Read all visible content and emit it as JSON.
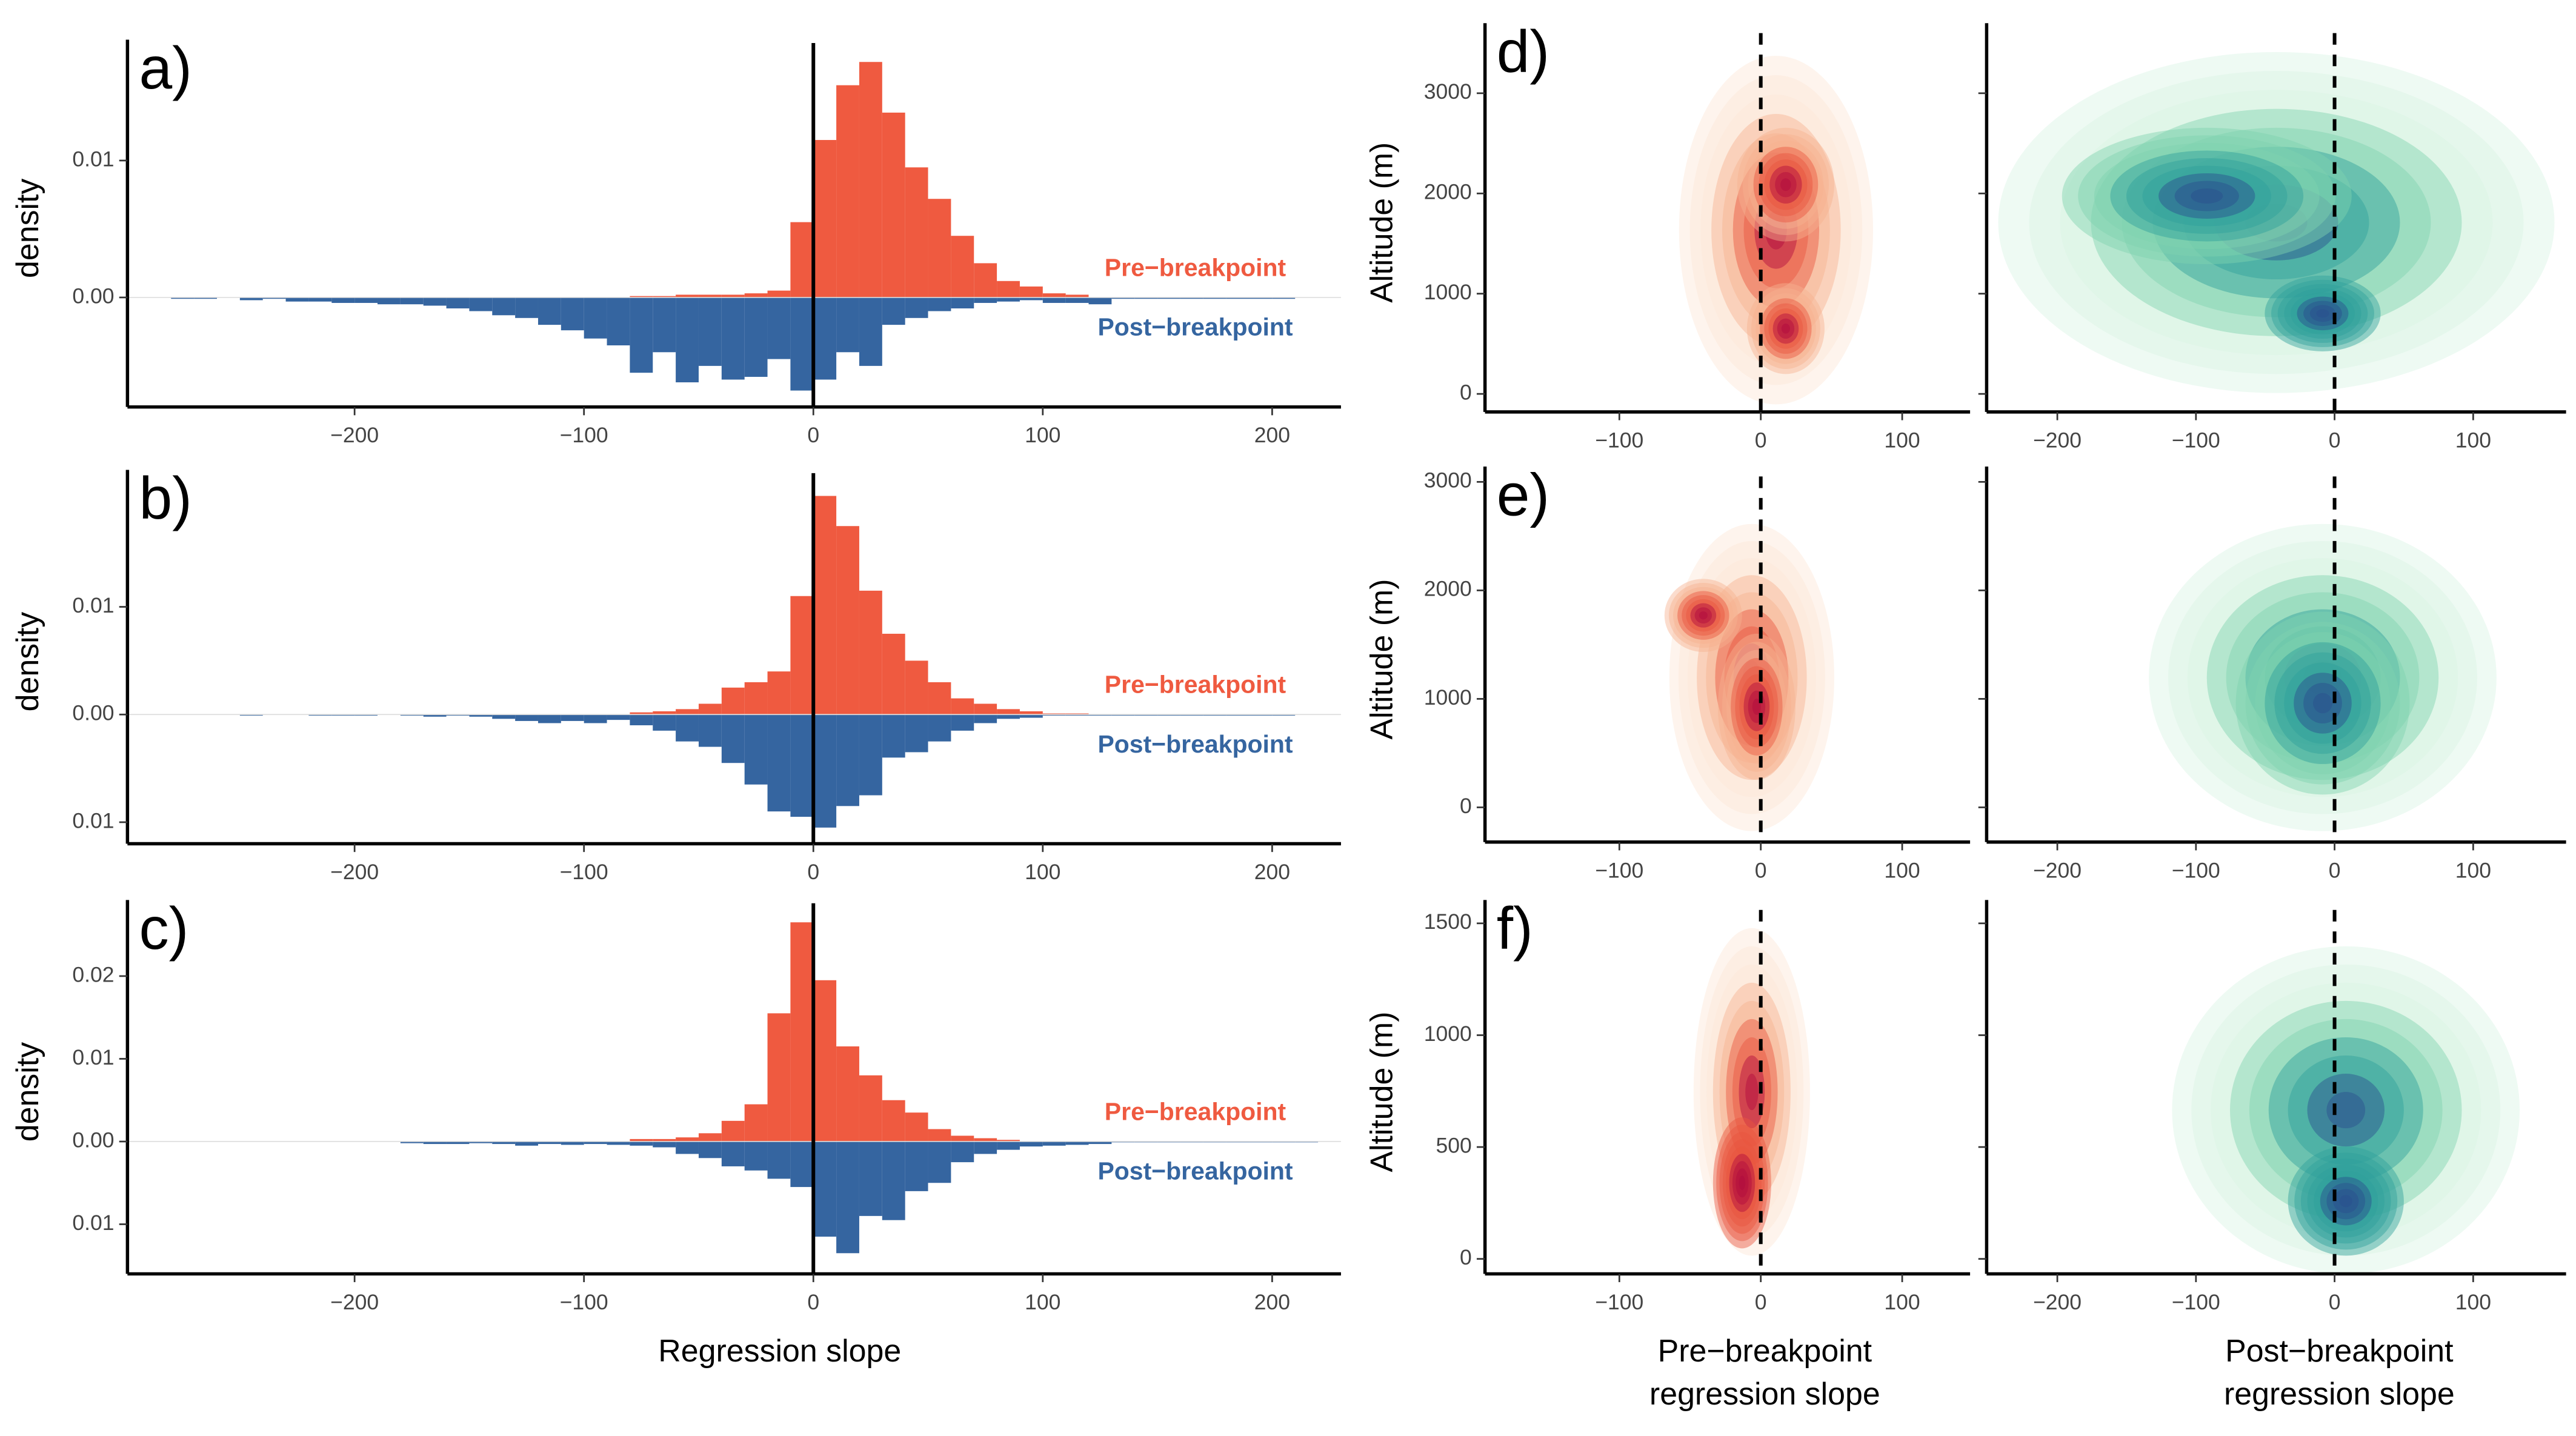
{
  "chart_data": [
    {
      "type": "histogram",
      "label": "a)",
      "ylabel": "density",
      "bins": [
        -280,
        -270,
        -260,
        -250,
        -240,
        -230,
        -220,
        -210,
        -200,
        -190,
        -180,
        -170,
        -160,
        -150,
        -140,
        -130,
        -120,
        -110,
        -100,
        -90,
        -80,
        -70,
        -60,
        -50,
        -40,
        -30,
        -20,
        -10,
        0,
        10,
        20,
        30,
        40,
        50,
        60,
        70,
        80,
        90,
        100,
        110,
        120,
        130,
        140,
        150,
        160,
        170,
        180,
        190,
        200,
        210,
        220
      ],
      "series": [
        {
          "name": "Pre−breakpoint",
          "color": "#ef5a40",
          "values": [
            0,
            0,
            0,
            0,
            0,
            0,
            0,
            0,
            0,
            0,
            0,
            0,
            0,
            0,
            0,
            0,
            0,
            0,
            0,
            0,
            0.0001,
            0.0001,
            0.0002,
            0.0002,
            0.0002,
            0.0003,
            0.0005,
            0.0055,
            0.0115,
            0.0155,
            0.0172,
            0.0135,
            0.0095,
            0.0072,
            0.0045,
            0.0025,
            0.0012,
            0.0008,
            0.0003,
            0.0002,
            0,
            0,
            0,
            0,
            0,
            0,
            0,
            0,
            0,
            0
          ]
        },
        {
          "name": "Post−breakpoint",
          "color": "#3565a0",
          "values": [
            -0.0001,
            -0.0001,
            0,
            -0.0002,
            -0.0001,
            -0.0003,
            -0.0003,
            -0.0004,
            -0.0004,
            -0.0005,
            -0.0005,
            -0.0006,
            -0.0008,
            -0.001,
            -0.0013,
            -0.0015,
            -0.002,
            -0.0024,
            -0.003,
            -0.0035,
            -0.0055,
            -0.004,
            -0.0062,
            -0.005,
            -0.006,
            -0.0058,
            -0.0045,
            -0.0068,
            -0.006,
            -0.004,
            -0.005,
            -0.002,
            -0.0015,
            -0.001,
            -0.0008,
            -0.0004,
            -0.0003,
            -0.0002,
            -0.0004,
            -0.0004,
            -0.0005,
            -0.0001,
            -0.0001,
            -0.0001,
            -0.0001,
            -0.0001,
            -0.0001,
            -0.0001,
            -0.0001,
            0
          ]
        }
      ],
      "xlim": [
        -299,
        230
      ],
      "ylim": [
        -0.008,
        0.0181
      ],
      "xticks": [
        {
          "value": -200,
          "label": "−200"
        },
        {
          "value": -100,
          "label": "−100"
        },
        0,
        100,
        200
      ],
      "yticks": [
        {
          "value": 0,
          "label": "0.00"
        },
        0.01
      ],
      "vline": 0
    },
    {
      "type": "histogram",
      "label": "b)",
      "ylabel": "density",
      "bins": [
        -280,
        -270,
        -260,
        -250,
        -240,
        -230,
        -220,
        -210,
        -200,
        -190,
        -180,
        -170,
        -160,
        -150,
        -140,
        -130,
        -120,
        -110,
        -100,
        -90,
        -80,
        -70,
        -60,
        -50,
        -40,
        -30,
        -20,
        -10,
        0,
        10,
        20,
        30,
        40,
        50,
        60,
        70,
        80,
        90,
        100,
        110,
        120,
        130,
        140,
        150,
        160,
        170,
        180,
        190,
        200,
        210,
        220
      ],
      "series": [
        {
          "name": "Pre−breakpoint",
          "color": "#ef5a40",
          "values": [
            0,
            0,
            0,
            0,
            0,
            0,
            0,
            0,
            0,
            0,
            0,
            0,
            0,
            0,
            0,
            0,
            0,
            0,
            0,
            0,
            0.0002,
            0.0003,
            0.0005,
            0.001,
            0.0025,
            0.003,
            0.004,
            0.011,
            0.0203,
            0.0175,
            0.0115,
            0.0075,
            0.005,
            0.003,
            0.0015,
            0.001,
            0.0005,
            0.0003,
            0.0001,
            0.0001,
            0,
            0,
            0,
            0,
            0,
            0,
            0,
            0,
            0,
            0
          ]
        },
        {
          "name": "Post−breakpoint",
          "color": "#3565a0",
          "values": [
            0,
            0,
            0,
            -0.0001,
            0,
            0,
            -0.0001,
            -0.0001,
            -0.0001,
            0,
            -0.0001,
            -0.0002,
            -0.0001,
            -0.0002,
            -0.0004,
            -0.0006,
            -0.0008,
            -0.0006,
            -0.0008,
            -0.0005,
            -0.001,
            -0.0015,
            -0.0025,
            -0.003,
            -0.0045,
            -0.0065,
            -0.009,
            -0.0095,
            -0.0105,
            -0.0085,
            -0.0075,
            -0.004,
            -0.0035,
            -0.0025,
            -0.0015,
            -0.0008,
            -0.0004,
            -0.0003,
            -0.0001,
            -0.0001,
            -0.0001,
            -0.0001,
            -0.0001,
            -0.0001,
            -0.0001,
            -0.0001,
            -0.0001,
            -0.0001,
            -0.0001,
            0
          ]
        }
      ],
      "xlim": [
        -299,
        230
      ],
      "ylim": [
        -0.012,
        0.0218
      ],
      "xticks": [
        {
          "value": -200,
          "label": "−200"
        },
        {
          "value": -100,
          "label": "−100"
        },
        0,
        100,
        200
      ],
      "yticks": [
        {
          "value": -0.01,
          "label": "0.01"
        },
        {
          "value": 0,
          "label": "0.00"
        },
        0.01
      ],
      "vline": 0
    },
    {
      "type": "histogram",
      "label": "c)",
      "ylabel": "density",
      "xlabel": "Regression slope",
      "bins": [
        -280,
        -270,
        -260,
        -250,
        -240,
        -230,
        -220,
        -210,
        -200,
        -190,
        -180,
        -170,
        -160,
        -150,
        -140,
        -130,
        -120,
        -110,
        -100,
        -90,
        -80,
        -70,
        -60,
        -50,
        -40,
        -30,
        -20,
        -10,
        0,
        10,
        20,
        30,
        40,
        50,
        60,
        70,
        80,
        90,
        100,
        110,
        120,
        130,
        140,
        150,
        160,
        170,
        180,
        190,
        200,
        210,
        220
      ],
      "series": [
        {
          "name": "Pre−breakpoint",
          "color": "#ef5a40",
          "values": [
            0,
            0,
            0,
            0,
            0,
            0,
            0,
            0,
            0,
            0,
            0,
            0,
            0,
            0,
            0,
            0,
            0,
            0,
            0,
            0,
            0.0003,
            0.0003,
            0.0005,
            0.001,
            0.0025,
            0.0045,
            0.0155,
            0.0265,
            0.0195,
            0.0115,
            0.008,
            0.005,
            0.0035,
            0.0015,
            0.0007,
            0.0004,
            0.0002,
            0,
            0,
            0,
            0,
            0,
            0,
            0,
            0,
            0,
            0,
            0,
            0,
            0
          ]
        },
        {
          "name": "Post−breakpoint",
          "color": "#3565a0",
          "values": [
            0,
            0,
            0,
            0,
            0,
            0,
            0,
            0,
            0,
            0,
            -0.0002,
            -0.0003,
            -0.0003,
            -0.0002,
            -0.0003,
            -0.0005,
            -0.0003,
            -0.0004,
            -0.0003,
            -0.0004,
            -0.0005,
            -0.0007,
            -0.0015,
            -0.002,
            -0.003,
            -0.0035,
            -0.0045,
            -0.0055,
            -0.0115,
            -0.0135,
            -0.009,
            -0.0095,
            -0.006,
            -0.005,
            -0.0025,
            -0.0015,
            -0.001,
            -0.0006,
            -0.0005,
            -0.0004,
            -0.0003,
            -0.0001,
            -0.0001,
            -0.0001,
            -0.0001,
            -0.0001,
            -0.0001,
            -0.0001,
            -0.0001,
            -0.0001
          ]
        }
      ],
      "xlim": [
        -299,
        230
      ],
      "ylim": [
        -0.016,
        0.028
      ],
      "xticks": [
        {
          "value": -200,
          "label": "−200"
        },
        {
          "value": -100,
          "label": "−100"
        },
        0,
        100,
        200
      ],
      "yticks": [
        {
          "value": -0.01,
          "label": "0.01"
        },
        {
          "value": 0,
          "label": "0.00"
        },
        0.01,
        0.02
      ],
      "vline": 0
    },
    {
      "type": "density2d",
      "label": "d)",
      "ylabel": "Altitude (m)",
      "palette": [
        "#fde6d8",
        "#f7b291",
        "#e8553d",
        "#b0083e"
      ],
      "xlim": [
        -195,
        148
      ],
      "ylim": [
        -180,
        3600
      ],
      "xticks": [
        {
          "value": -100,
          "label": "−100"
        },
        0,
        100
      ],
      "yticks": [
        0,
        1000,
        2000,
        3000
      ],
      "vline": 0
    },
    {
      "type": "density2d",
      "palette": [
        "#d9f5e4",
        "#7fd3b0",
        "#2e9f9c",
        "#2b4e8e"
      ],
      "xlim": [
        -251,
        167
      ],
      "ylim": [
        -180,
        3600
      ],
      "xticks": [
        {
          "value": -200,
          "label": "−200"
        },
        {
          "value": -100,
          "label": "−100"
        },
        0,
        100
      ],
      "yticks": [
        0,
        1000,
        2000,
        3000
      ],
      "vline": 0
    },
    {
      "type": "density2d",
      "label": "e)",
      "ylabel": "Altitude (m)",
      "palette": [
        "#fde6d8",
        "#f7b291",
        "#e8553d",
        "#b0083e"
      ],
      "xlim": [
        -195,
        148
      ],
      "ylim": [
        -320,
        3050
      ],
      "xticks": [
        {
          "value": -100,
          "label": "−100"
        },
        0,
        100
      ],
      "yticks": [
        0,
        1000,
        2000,
        3000
      ],
      "vline": 0
    },
    {
      "type": "density2d",
      "palette": [
        "#d9f5e4",
        "#7fd3b0",
        "#2e9f9c",
        "#2b4e8e"
      ],
      "xlim": [
        -251,
        167
      ],
      "ylim": [
        -320,
        3050
      ],
      "xticks": [
        {
          "value": -200,
          "label": "−200"
        },
        {
          "value": -100,
          "label": "−100"
        },
        0,
        100
      ],
      "yticks": [
        0,
        1000,
        2000,
        3000
      ],
      "vline": 0
    },
    {
      "type": "density2d",
      "label": "f)",
      "ylabel": "Altitude (m)",
      "xlabel": [
        "Pre−breakpoint",
        "regression slope"
      ],
      "palette": [
        "#fde6d8",
        "#f7b291",
        "#e8553d",
        "#b0083e"
      ],
      "xlim": [
        -195,
        148
      ],
      "ylim": [
        -67,
        1560
      ],
      "xticks": [
        {
          "value": -100,
          "label": "−100"
        },
        0,
        100
      ],
      "yticks": [
        0,
        500,
        1000,
        1500
      ],
      "vline": 0
    },
    {
      "type": "density2d",
      "xlabel": [
        "Post−breakpoint",
        "regression slope"
      ],
      "palette": [
        "#d9f5e4",
        "#7fd3b0",
        "#2e9f9c",
        "#2b4e8e"
      ],
      "xlim": [
        -251,
        167
      ],
      "ylim": [
        -67,
        1560
      ],
      "xticks": [
        {
          "value": -200,
          "label": "−200"
        },
        {
          "value": -100,
          "label": "−100"
        },
        0,
        100
      ],
      "yticks": [
        0,
        500,
        1000,
        1500
      ],
      "vline": 0
    }
  ]
}
